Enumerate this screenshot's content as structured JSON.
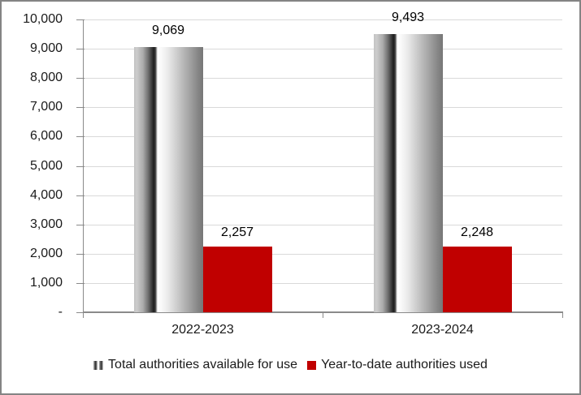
{
  "chart_data": {
    "type": "bar",
    "title": "",
    "categories": [
      "2022-2023",
      "2023-2024"
    ],
    "series": [
      {
        "name": "Total authorities available for use",
        "values": [
          9069,
          9493
        ],
        "data_labels": [
          "9,069",
          "9,493"
        ],
        "fill": "gray-cylinder-gradient"
      },
      {
        "name": "Year-to-date authorities used",
        "values": [
          2257,
          2248
        ],
        "data_labels": [
          "2,257",
          "2,248"
        ],
        "fill": "#C00000"
      }
    ],
    "y_axis": {
      "min": 0,
      "max": 10000,
      "tick_interval": 1000,
      "tick_labels": [
        "-",
        "1,000",
        "2,000",
        "3,000",
        "4,000",
        "5,000",
        "6,000",
        "7,000",
        "8,000",
        "9,000",
        "10,000"
      ]
    },
    "xlabel": "",
    "ylabel": "",
    "grid": true,
    "legend_position": "bottom",
    "colors": {
      "bar_red": "#C00000",
      "gridline": "#D9D9D9",
      "axis": "#8A8A8A",
      "border": "#848484",
      "text": "#1A1A1A"
    }
  }
}
